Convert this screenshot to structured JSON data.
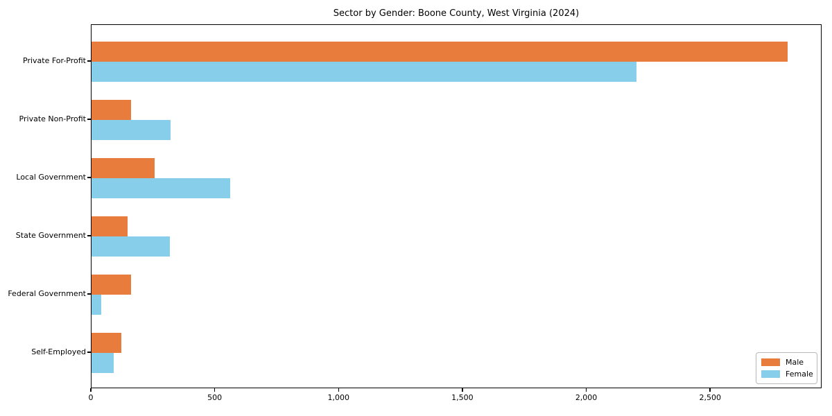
{
  "chart_data": {
    "type": "bar",
    "orientation": "horizontal",
    "title": "Sector by Gender: Boone County, West Virginia (2024)",
    "categories": [
      "Private For-Profit",
      "Private Non-Profit",
      "Local Government",
      "State Government",
      "Federal Government",
      "Self-Employed"
    ],
    "series": [
      {
        "name": "Male",
        "color": "#E77C3C",
        "values": [
          2810,
          160,
          255,
          145,
          160,
          120
        ]
      },
      {
        "name": "Female",
        "color": "#87CEEB",
        "values": [
          2200,
          320,
          560,
          315,
          40,
          90
        ]
      }
    ],
    "xlabel": "",
    "ylabel": "",
    "xlim": [
      0,
      2950
    ],
    "x_ticks": [
      0,
      500,
      1000,
      1500,
      2000,
      2500
    ],
    "x_tick_labels": [
      "0",
      "500",
      "1,000",
      "1,500",
      "2,000",
      "2,500"
    ],
    "grid": false,
    "legend": {
      "position": "lower right",
      "entries": [
        "Male",
        "Female"
      ]
    },
    "colors": {
      "male": "#E77C3C",
      "female": "#87CEEB",
      "spine": "#000000",
      "background": "#ffffff"
    }
  }
}
